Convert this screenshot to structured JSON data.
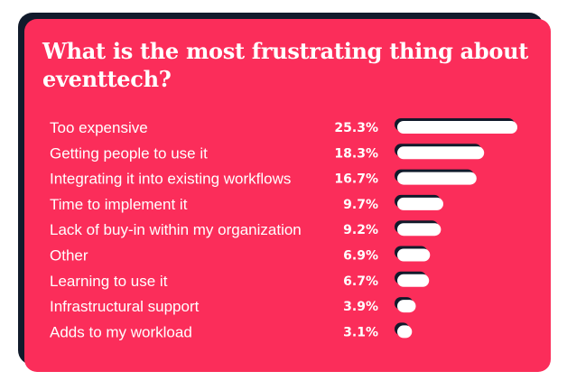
{
  "colors": {
    "background": "#ffffff",
    "card": "#fb2d5a",
    "card_shadow": "#111a2b",
    "bar": "#ffffff",
    "bar_shadow": "#111a2b",
    "text": "#ffffff"
  },
  "chart_data": {
    "type": "bar",
    "orientation": "horizontal",
    "title": "What is the most frustrating thing about eventtech?",
    "categories": [
      "Too expensive",
      "Getting people to use it",
      "Integrating it into existing workflows",
      "Time to implement it",
      "Lack of buy-in within my organization",
      "Other",
      "Learning to use it",
      "Infrastructural support",
      "Adds to my workload"
    ],
    "values": [
      25.3,
      18.3,
      16.7,
      9.7,
      9.2,
      6.9,
      6.7,
      3.9,
      3.1
    ],
    "value_labels": [
      "25.3%",
      "18.3%",
      "16.7%",
      "9.7%",
      "9.2%",
      "6.9%",
      "6.7%",
      "3.9%",
      "3.1%"
    ],
    "xlim": [
      0,
      25.3
    ],
    "grid": false,
    "legend": false
  }
}
